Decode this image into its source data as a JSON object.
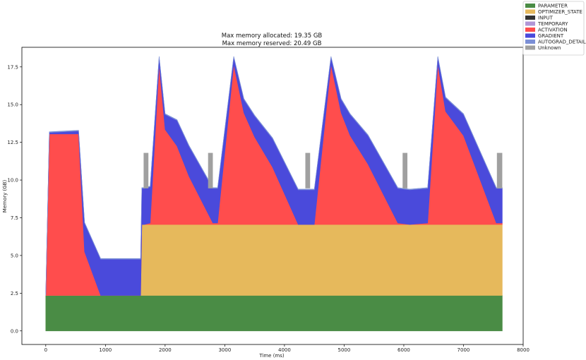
{
  "chart_data": {
    "type": "area",
    "title": [
      "Max memory allocated: 19.35 GB",
      "Max memory reserved: 20.49 GB"
    ],
    "xlabel": "Time (ms)",
    "ylabel": "Memory (GB)",
    "xlim": [
      -400,
      8000
    ],
    "ylim": [
      -0.9,
      18.8
    ],
    "xticks": [
      0,
      1000,
      2000,
      3000,
      4000,
      5000,
      6000,
      7000,
      8000
    ],
    "yticks": [
      0.0,
      2.5,
      5.0,
      7.5,
      10.0,
      12.5,
      15.0,
      17.5
    ],
    "legend_position": "outside-top-right",
    "series": [
      {
        "name": "PARAMETER",
        "color": "#4a8c45",
        "x": [
          0,
          7650
        ],
        "values": [
          2.35,
          2.35
        ]
      },
      {
        "name": "OPTIMIZER_STATE",
        "color": "#e6b95c",
        "x": [
          0,
          1590,
          1610,
          1650,
          7650
        ],
        "values": [
          0,
          0,
          4.7,
          4.7,
          4.7
        ]
      },
      {
        "name": "INPUT",
        "color": "#333333",
        "x": [
          0,
          7650
        ],
        "values": [
          0,
          0
        ]
      },
      {
        "name": "TEMPORARY",
        "color": "#b196d6",
        "x": [
          0,
          7650
        ],
        "values": [
          0,
          0
        ]
      },
      {
        "name": "ACTIVATION",
        "color": "#ff4d4d",
        "x": [
          0,
          60,
          550,
          650,
          920,
          960,
          1600,
          1650,
          1750,
          1900,
          2000,
          2200,
          2400,
          2800,
          2880,
          3150,
          3320,
          3500,
          3800,
          4230,
          4500,
          4780,
          4950,
          5100,
          5400,
          5900,
          6100,
          6400,
          6570,
          6700,
          7000,
          7550,
          7650
        ],
        "values": [
          0,
          10.7,
          10.7,
          2.9,
          0,
          0,
          0,
          0,
          0.1,
          10.6,
          6.3,
          5.2,
          3.2,
          0.1,
          0.1,
          10.6,
          7.4,
          5.8,
          3.8,
          0,
          0,
          10.6,
          7.4,
          5.9,
          4.0,
          0.1,
          0,
          0.1,
          10.6,
          7.5,
          5.9,
          0.1,
          0.1
        ]
      },
      {
        "name": "GRADIENT",
        "color": "#4a4adb",
        "x": [
          0,
          60,
          550,
          650,
          920,
          960,
          1600,
          1650,
          1750,
          1900,
          2000,
          2200,
          2400,
          2800,
          2880,
          3150,
          3320,
          3500,
          3800,
          4230,
          4500,
          4780,
          4950,
          5100,
          5400,
          5900,
          6100,
          6400,
          6570,
          6700,
          7000,
          7550,
          7650
        ],
        "values": [
          0,
          0.1,
          0.2,
          1.9,
          2.4,
          2.4,
          2.4,
          2.4,
          2.4,
          0.5,
          1.0,
          1.7,
          2.0,
          2.3,
          2.3,
          0.5,
          0.9,
          1.4,
          1.9,
          2.3,
          2.3,
          0.5,
          0.9,
          1.4,
          1.9,
          2.3,
          2.3,
          2.3,
          0.5,
          0.9,
          1.4,
          2.3,
          2.3
        ]
      },
      {
        "name": "AUTOGRAD_DETAIL",
        "color": "#7b8fd6",
        "x": [
          0,
          7650
        ],
        "values": [
          0.05,
          0.05
        ]
      },
      {
        "name": "Unknown",
        "color": "#a0a0a0",
        "spikes": [
          {
            "x": [
              1640,
              1720
            ],
            "bottom": 9.45,
            "top": 11.8
          },
          {
            "x": [
              2720,
              2800
            ],
            "bottom": 9.45,
            "top": 11.8
          },
          {
            "x": [
              4350,
              4430
            ],
            "bottom": 9.45,
            "top": 11.8
          },
          {
            "x": [
              5980,
              6060
            ],
            "bottom": 9.45,
            "top": 11.8
          },
          {
            "x": [
              7560,
              7650
            ],
            "bottom": 9.45,
            "top": 11.8
          }
        ]
      }
    ]
  }
}
